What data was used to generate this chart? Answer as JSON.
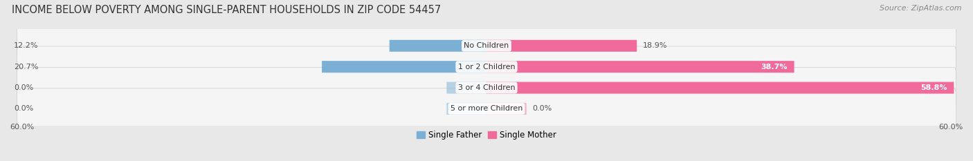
{
  "title": "INCOME BELOW POVERTY AMONG SINGLE-PARENT HOUSEHOLDS IN ZIP CODE 54457",
  "source": "Source: ZipAtlas.com",
  "categories": [
    "No Children",
    "1 or 2 Children",
    "3 or 4 Children",
    "5 or more Children"
  ],
  "father_values": [
    12.2,
    20.7,
    0.0,
    0.0
  ],
  "mother_values": [
    18.9,
    38.7,
    58.8,
    0.0
  ],
  "father_color": "#7bafd4",
  "mother_color": "#f06a9b",
  "father_label": "Single Father",
  "mother_label": "Single Mother",
  "axis_max": 60.0,
  "background_color": "#e8e8e8",
  "row_bg_color": "#f5f5f5",
  "title_fontsize": 10.5,
  "source_fontsize": 8,
  "label_fontsize": 8,
  "value_fontsize": 8,
  "axis_label": "60.0%",
  "stub_value": 5.0
}
